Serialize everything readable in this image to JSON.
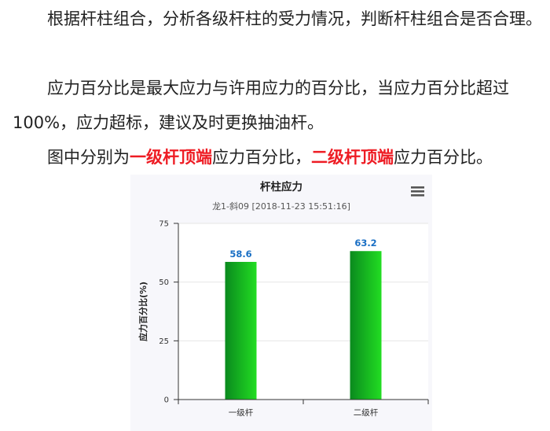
{
  "paragraphs": {
    "p1": "根据杆柱组合，分析各级杆柱的受力情况，判断杆柱组合是否合理。",
    "p2": "应力百分比是最大应力与许用应力的百分比，当应力百分比超过100%，应力超标，建议及时更换抽油杆。",
    "p3": {
      "before": "图中分别为",
      "highlight1": "一级杆顶端",
      "middle": "应力百分比，",
      "highlight2": "二级杆顶端",
      "after": "应力百分比。"
    }
  },
  "colors": {
    "highlight": "#ee1c24",
    "bar_dark": "#0a8a1e",
    "bar_light": "#22dd22",
    "data_label": "#1a6fc4",
    "chart_background": "#f7f7fb"
  },
  "chart_menu": {
    "icon": "hamburger-menu-icon"
  },
  "chart_data": {
    "type": "bar",
    "title": "杆柱应力",
    "subtitle": "龙1-斜09 [2018-11-23 15:51:16]",
    "xlabel": "",
    "ylabel": "应力百分比(%)",
    "categories": [
      "一级杆",
      "二级杆"
    ],
    "values": [
      58.6,
      63.2
    ],
    "value_labels": [
      "58.6",
      "63.2"
    ],
    "ylim": [
      0,
      75
    ],
    "yticks": [
      0,
      25,
      50,
      75
    ],
    "ytick_labels": [
      "0",
      "25",
      "50",
      "75"
    ],
    "grid": true,
    "legend": "none"
  }
}
